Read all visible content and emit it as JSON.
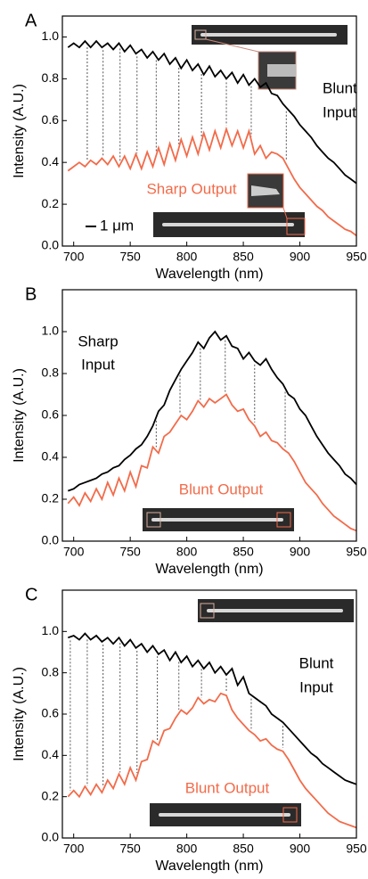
{
  "chart_data": [
    {
      "type": "line",
      "panel_label": "A",
      "xlabel": "Wavelength (nm)",
      "ylabel": "Intensity (A.U.)",
      "xlim": [
        690,
        950
      ],
      "ylim": [
        0,
        1.1
      ],
      "xticks": [
        700,
        750,
        800,
        850,
        900,
        950
      ],
      "yticks": [
        {
          "value": 0,
          "label": "0.0"
        },
        {
          "value": 0.2,
          "label": "0.2"
        },
        {
          "value": 0.4,
          "label": "0.4"
        },
        {
          "value": 0.6,
          "label": "0.6"
        },
        {
          "value": 0.8,
          "label": "0.8"
        },
        {
          "value": 1,
          "label": "1.0"
        }
      ],
      "x": [
        695,
        700,
        705,
        710,
        715,
        720,
        725,
        730,
        735,
        740,
        745,
        750,
        755,
        760,
        765,
        770,
        775,
        780,
        785,
        790,
        795,
        800,
        805,
        810,
        815,
        820,
        825,
        830,
        835,
        840,
        845,
        850,
        855,
        860,
        865,
        870,
        875,
        880,
        885,
        890,
        895,
        900,
        905,
        910,
        915,
        920,
        925,
        930,
        935,
        940,
        945,
        950
      ],
      "series": [
        {
          "color": "#000000",
          "values": [
            0.95,
            0.97,
            0.95,
            0.98,
            0.95,
            0.98,
            0.95,
            0.97,
            0.94,
            0.97,
            0.93,
            0.96,
            0.92,
            0.94,
            0.9,
            0.93,
            0.89,
            0.92,
            0.87,
            0.9,
            0.85,
            0.89,
            0.84,
            0.87,
            0.82,
            0.86,
            0.81,
            0.84,
            0.8,
            0.83,
            0.78,
            0.82,
            0.77,
            0.8,
            0.76,
            0.78,
            0.73,
            0.72,
            0.68,
            0.65,
            0.62,
            0.58,
            0.55,
            0.52,
            0.48,
            0.45,
            0.42,
            0.4,
            0.37,
            0.34,
            0.32,
            0.3
          ]
        },
        {
          "color": "#f26b4a",
          "values": [
            0.36,
            0.38,
            0.4,
            0.38,
            0.41,
            0.39,
            0.42,
            0.39,
            0.43,
            0.38,
            0.43,
            0.37,
            0.44,
            0.37,
            0.45,
            0.38,
            0.47,
            0.39,
            0.49,
            0.41,
            0.51,
            0.43,
            0.52,
            0.44,
            0.54,
            0.46,
            0.55,
            0.47,
            0.56,
            0.48,
            0.55,
            0.47,
            0.55,
            0.44,
            0.48,
            0.42,
            0.45,
            0.44,
            0.42,
            0.37,
            0.32,
            0.28,
            0.25,
            0.22,
            0.19,
            0.17,
            0.14,
            0.12,
            0.1,
            0.08,
            0.07,
            0.05
          ]
        }
      ],
      "peak_x": [
        712,
        726,
        741,
        756,
        773,
        793,
        813,
        835,
        857,
        888
      ],
      "annotations": [
        {
          "text": "Blunt",
          "color": "#000000"
        },
        {
          "text": "Input",
          "color": "#000000"
        },
        {
          "text": "Sharp Output",
          "color": "#f26b4a"
        },
        {
          "text": "1 μm",
          "color": "#000000"
        }
      ]
    },
    {
      "type": "line",
      "panel_label": "B",
      "xlabel": "Wavelength (nm)",
      "ylabel": "Intensity (A.U.)",
      "xlim": [
        690,
        950
      ],
      "ylim": [
        0,
        1.2
      ],
      "xticks": [
        700,
        750,
        800,
        850,
        900,
        950
      ],
      "yticks": [
        {
          "value": 0,
          "label": "0.0"
        },
        {
          "value": 0.2,
          "label": "0.2"
        },
        {
          "value": 0.4,
          "label": "0.4"
        },
        {
          "value": 0.6,
          "label": "0.6"
        },
        {
          "value": 0.8,
          "label": "0.8"
        },
        {
          "value": 1,
          "label": "1.0"
        }
      ],
      "x": [
        695,
        700,
        705,
        710,
        715,
        720,
        725,
        730,
        735,
        740,
        745,
        750,
        755,
        760,
        765,
        770,
        775,
        780,
        785,
        790,
        795,
        800,
        805,
        810,
        815,
        820,
        825,
        830,
        835,
        840,
        845,
        850,
        855,
        860,
        865,
        870,
        875,
        880,
        885,
        890,
        895,
        900,
        905,
        910,
        915,
        920,
        925,
        930,
        935,
        940,
        945,
        950
      ],
      "series": [
        {
          "color": "#000000",
          "values": [
            0.24,
            0.25,
            0.27,
            0.28,
            0.29,
            0.3,
            0.32,
            0.33,
            0.35,
            0.36,
            0.39,
            0.41,
            0.44,
            0.46,
            0.5,
            0.55,
            0.62,
            0.65,
            0.72,
            0.77,
            0.82,
            0.86,
            0.9,
            0.95,
            0.92,
            0.97,
            1.0,
            0.96,
            0.98,
            0.93,
            0.92,
            0.87,
            0.9,
            0.86,
            0.84,
            0.87,
            0.82,
            0.78,
            0.75,
            0.7,
            0.68,
            0.63,
            0.6,
            0.55,
            0.5,
            0.46,
            0.42,
            0.39,
            0.36,
            0.32,
            0.3,
            0.27
          ]
        },
        {
          "color": "#f26b4a",
          "values": [
            0.18,
            0.21,
            0.17,
            0.23,
            0.19,
            0.25,
            0.2,
            0.28,
            0.22,
            0.3,
            0.24,
            0.33,
            0.26,
            0.36,
            0.35,
            0.45,
            0.42,
            0.5,
            0.52,
            0.56,
            0.6,
            0.58,
            0.62,
            0.67,
            0.64,
            0.68,
            0.66,
            0.68,
            0.7,
            0.65,
            0.62,
            0.63,
            0.58,
            0.55,
            0.5,
            0.52,
            0.48,
            0.47,
            0.44,
            0.42,
            0.38,
            0.33,
            0.28,
            0.25,
            0.22,
            0.18,
            0.15,
            0.12,
            0.1,
            0.08,
            0.06,
            0.05
          ]
        }
      ],
      "peak_x": [
        773,
        794,
        812,
        834,
        860,
        887
      ],
      "annotations": [
        {
          "text": "Sharp",
          "color": "#000000"
        },
        {
          "text": "Input",
          "color": "#000000"
        },
        {
          "text": "Blunt Output",
          "color": "#f26b4a"
        }
      ]
    },
    {
      "type": "line",
      "panel_label": "C",
      "xlabel": "Wavelength (nm)",
      "ylabel": "Intensity (A.U.)",
      "xlim": [
        690,
        950
      ],
      "ylim": [
        0,
        1.2
      ],
      "xticks": [
        700,
        750,
        800,
        850,
        900,
        950
      ],
      "yticks": [
        {
          "value": 0,
          "label": "0.0"
        },
        {
          "value": 0.2,
          "label": "0.2"
        },
        {
          "value": 0.4,
          "label": "0.4"
        },
        {
          "value": 0.6,
          "label": "0.6"
        },
        {
          "value": 0.8,
          "label": "0.8"
        },
        {
          "value": 1,
          "label": "1.0"
        }
      ],
      "x": [
        695,
        700,
        705,
        710,
        715,
        720,
        725,
        730,
        735,
        740,
        745,
        750,
        755,
        760,
        765,
        770,
        775,
        780,
        785,
        790,
        795,
        800,
        805,
        810,
        815,
        820,
        825,
        830,
        835,
        840,
        845,
        850,
        855,
        860,
        865,
        870,
        875,
        880,
        885,
        890,
        895,
        900,
        905,
        910,
        915,
        920,
        925,
        930,
        935,
        940,
        945,
        950
      ],
      "series": [
        {
          "color": "#000000",
          "values": [
            0.97,
            0.98,
            0.96,
            0.99,
            0.96,
            0.98,
            0.95,
            0.97,
            0.94,
            0.97,
            0.93,
            0.96,
            0.92,
            0.94,
            0.9,
            0.93,
            0.89,
            0.91,
            0.86,
            0.9,
            0.85,
            0.88,
            0.83,
            0.86,
            0.82,
            0.85,
            0.8,
            0.83,
            0.79,
            0.82,
            0.74,
            0.78,
            0.7,
            0.68,
            0.66,
            0.64,
            0.6,
            0.58,
            0.56,
            0.53,
            0.5,
            0.47,
            0.44,
            0.41,
            0.39,
            0.36,
            0.34,
            0.32,
            0.3,
            0.28,
            0.27,
            0.26
          ]
        },
        {
          "color": "#f26b4a",
          "values": [
            0.2,
            0.23,
            0.2,
            0.25,
            0.21,
            0.26,
            0.22,
            0.28,
            0.24,
            0.31,
            0.26,
            0.34,
            0.28,
            0.37,
            0.38,
            0.47,
            0.45,
            0.52,
            0.53,
            0.58,
            0.62,
            0.6,
            0.63,
            0.68,
            0.65,
            0.67,
            0.66,
            0.7,
            0.69,
            0.62,
            0.58,
            0.55,
            0.52,
            0.5,
            0.47,
            0.48,
            0.45,
            0.43,
            0.42,
            0.38,
            0.33,
            0.28,
            0.24,
            0.21,
            0.18,
            0.15,
            0.12,
            0.1,
            0.08,
            0.07,
            0.06,
            0.05
          ]
        }
      ],
      "peak_x": [
        697,
        712,
        726,
        741,
        756,
        774,
        793,
        813,
        835,
        857,
        885
      ],
      "annotations": [
        {
          "text": "Blunt",
          "color": "#000000"
        },
        {
          "text": "Input",
          "color": "#000000"
        },
        {
          "text": "Blunt Output",
          "color": "#f26b4a"
        }
      ]
    }
  ]
}
